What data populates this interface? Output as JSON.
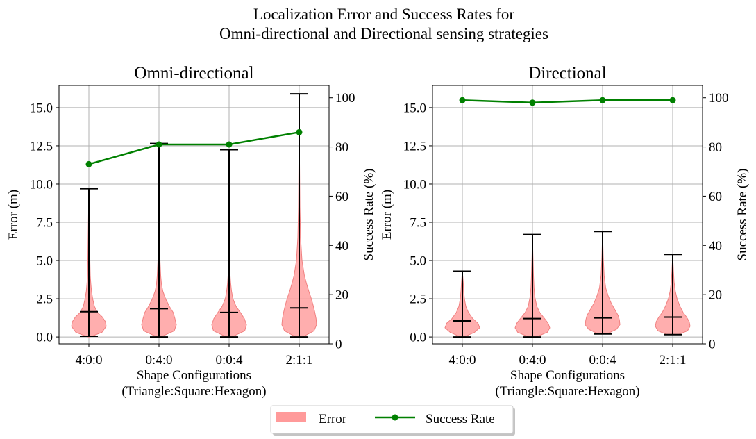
{
  "figure": {
    "title_line1": "Localization Error and Success Rates for",
    "title_line2": "Omni-directional and Directional sensing strategies"
  },
  "legend": {
    "items": [
      {
        "label": "Error",
        "color": "#ff9a9a"
      },
      {
        "label": "Success Rate",
        "color": "#008000"
      }
    ]
  },
  "colors": {
    "violin_fill": "#ff9a9a",
    "violin_edge": "#f08080",
    "line": "#008000",
    "error_bar": "#000000",
    "grid": "#b0b0b0"
  },
  "chart_data": [
    {
      "type": "violin",
      "title": "Omni-directional",
      "xlabel_line1": "Shape Configurations",
      "xlabel_line2": "(Triangle:Square:Hexagon)",
      "ylabel": "Error (m)",
      "ylabel_right": "Success Rate (%)",
      "categories": [
        "4:0:0",
        "0:4:0",
        "0:0:4",
        "2:1:1"
      ],
      "ylim": [
        -0.45,
        16.45
      ],
      "yticks": [
        0.0,
        2.5,
        5.0,
        7.5,
        10.0,
        12.5,
        15.0
      ],
      "ytick_labels": [
        "0.0",
        "2.5",
        "5.0",
        "7.5",
        "10.0",
        "12.5",
        "15.0"
      ],
      "ylim_right": [
        0,
        105
      ],
      "yticks_right": [
        0,
        20,
        40,
        60,
        80,
        100
      ],
      "ytick_labels_right": [
        "0",
        "20",
        "40",
        "60",
        "80",
        "100"
      ],
      "error": {
        "min": [
          0.05,
          0.0,
          0.0,
          0.0
        ],
        "median": [
          1.65,
          1.85,
          1.6,
          1.9
        ],
        "max": [
          9.7,
          12.65,
          12.25,
          15.9
        ],
        "density_y": [
          [
            0.0,
            0.3,
            0.7,
            1.0,
            1.3,
            1.6,
            2.0,
            2.5,
            3.0,
            3.5,
            4.0,
            5.0,
            6.0,
            7.5,
            9.7
          ],
          [
            0.0,
            0.4,
            0.8,
            1.2,
            1.6,
            2.0,
            2.5,
            3.0,
            3.5,
            4.0,
            5.0,
            6.0,
            8.0,
            10.0,
            12.65
          ],
          [
            0.0,
            0.4,
            0.8,
            1.2,
            1.6,
            2.0,
            2.5,
            3.0,
            3.5,
            4.0,
            5.0,
            6.5,
            8.0,
            10.0,
            12.25
          ],
          [
            0.0,
            0.4,
            0.8,
            1.2,
            1.6,
            2.0,
            2.5,
            3.0,
            3.5,
            4.0,
            5.0,
            6.5,
            8.5,
            12.0,
            15.9
          ]
        ],
        "density_w": [
          [
            0.05,
            0.75,
            1.0,
            0.95,
            0.78,
            0.5,
            0.32,
            0.22,
            0.15,
            0.11,
            0.08,
            0.06,
            0.05,
            0.03,
            0.0
          ],
          [
            0.1,
            0.88,
            1.0,
            0.92,
            0.82,
            0.6,
            0.38,
            0.22,
            0.14,
            0.1,
            0.06,
            0.04,
            0.02,
            0.015,
            0.0
          ],
          [
            0.15,
            0.9,
            1.0,
            0.88,
            0.65,
            0.4,
            0.22,
            0.14,
            0.09,
            0.06,
            0.04,
            0.025,
            0.015,
            0.01,
            0.0
          ],
          [
            0.2,
            0.85,
            1.0,
            0.97,
            0.9,
            0.82,
            0.7,
            0.55,
            0.42,
            0.3,
            0.16,
            0.08,
            0.04,
            0.015,
            0.0
          ]
        ]
      },
      "success_rate": [
        73,
        81,
        81,
        86
      ]
    },
    {
      "type": "violin",
      "title": "Directional",
      "xlabel_line1": "Shape Configurations",
      "xlabel_line2": "(Triangle:Square:Hexagon)",
      "ylabel": "Error (m)",
      "ylabel_right": "Success Rate (%)",
      "categories": [
        "4:0:0",
        "0:4:0",
        "0:0:4",
        "2:1:1"
      ],
      "ylim": [
        -0.45,
        16.45
      ],
      "yticks": [
        0.0,
        2.5,
        5.0,
        7.5,
        10.0,
        12.5,
        15.0
      ],
      "ytick_labels": [
        "0.0",
        "2.5",
        "5.0",
        "7.5",
        "10.0",
        "12.5",
        "15.0"
      ],
      "ylim_right": [
        0,
        105
      ],
      "yticks_right": [
        0,
        20,
        40,
        60,
        80,
        100
      ],
      "ytick_labels_right": [
        "0",
        "20",
        "40",
        "60",
        "80",
        "100"
      ],
      "error": {
        "min": [
          0.0,
          0.0,
          0.2,
          0.15
        ],
        "median": [
          1.05,
          1.2,
          1.25,
          1.3
        ],
        "max": [
          4.3,
          6.7,
          6.9,
          5.4
        ],
        "density_y": [
          [
            0.0,
            0.3,
            0.6,
            0.9,
            1.2,
            1.6,
            2.0,
            2.5,
            3.0,
            3.6,
            4.3
          ],
          [
            0.0,
            0.3,
            0.6,
            0.9,
            1.2,
            1.6,
            2.0,
            2.6,
            3.2,
            4.0,
            5.2,
            6.7
          ],
          [
            0.2,
            0.5,
            0.8,
            1.1,
            1.4,
            1.8,
            2.2,
            2.7,
            3.2,
            4.0,
            5.2,
            6.9
          ],
          [
            0.15,
            0.4,
            0.7,
            1.0,
            1.3,
            1.6,
            2.0,
            2.5,
            3.0,
            3.6,
            4.4,
            5.4
          ]
        ],
        "density_w": [
          [
            0.1,
            0.7,
            1.0,
            0.9,
            0.6,
            0.35,
            0.2,
            0.12,
            0.08,
            0.05,
            0.0
          ],
          [
            0.2,
            0.85,
            1.0,
            0.9,
            0.7,
            0.42,
            0.25,
            0.14,
            0.09,
            0.06,
            0.03,
            0.0
          ],
          [
            0.25,
            0.8,
            1.0,
            0.97,
            0.9,
            0.7,
            0.5,
            0.32,
            0.18,
            0.09,
            0.04,
            0.0
          ],
          [
            0.3,
            0.85,
            1.0,
            0.95,
            0.8,
            0.6,
            0.42,
            0.25,
            0.15,
            0.08,
            0.04,
            0.0
          ]
        ]
      },
      "success_rate": [
        99,
        98,
        99,
        99
      ]
    }
  ]
}
